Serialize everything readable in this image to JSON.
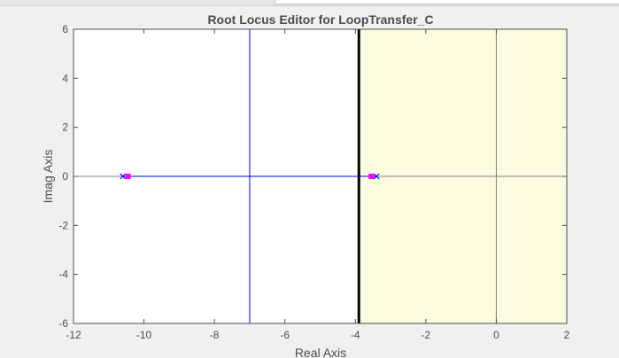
{
  "colors": {
    "figure_background": "#f0f0f0",
    "axes_background": "#ffffff",
    "spec_region_fill": "#fafbdf",
    "locus_line": "#0000ff",
    "pole_marker": "#0000ff",
    "closed_loop_pole": "#ff00ff",
    "axis_color": "#4d4d4d",
    "constraint_line": "#000000",
    "zero_axis_line": "#808080"
  },
  "chart_data": {
    "type": "scatter",
    "title": "Root Locus Editor for LoopTransfer_C",
    "xlabel": "Real Axis",
    "ylabel": "Imag Axis",
    "xlim": [
      -12,
      2
    ],
    "ylim": [
      -6,
      6
    ],
    "xticks": [
      -12,
      -10,
      -8,
      -6,
      -4,
      -2,
      0,
      2
    ],
    "yticks": [
      -6,
      -4,
      -2,
      0,
      2,
      4,
      6
    ],
    "grid": false,
    "legend": false,
    "design_constraint": {
      "type": "settling-time boundary",
      "real_value": -3.9,
      "shaded_side": "right"
    },
    "locus_branches": [
      {
        "name": "real-axis branch",
        "x": [
          -10.6,
          -3.4
        ],
        "y": [
          0,
          0
        ]
      },
      {
        "name": "breakaway vertical branch",
        "x": [
          -7,
          -7
        ],
        "y": [
          -6,
          6
        ]
      }
    ],
    "open_loop_poles": [
      {
        "x": -10.6,
        "y": 0
      },
      {
        "x": -3.4,
        "y": 0
      }
    ],
    "closed_loop_poles": [
      {
        "x": -10.45,
        "y": 0
      },
      {
        "x": -3.55,
        "y": 0
      }
    ]
  }
}
